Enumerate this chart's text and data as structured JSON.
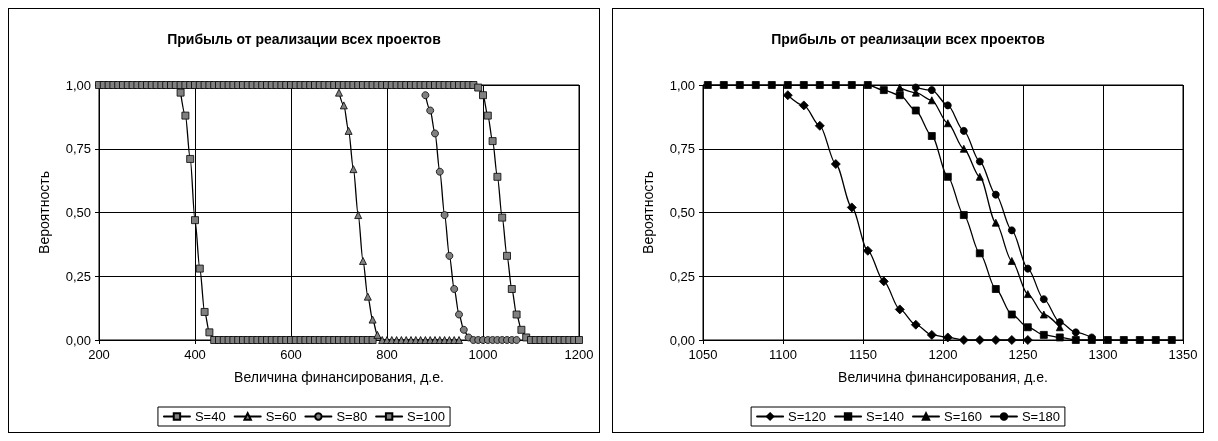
{
  "chart_data": [
    {
      "type": "line",
      "title": "Прибыль от реализации всех проектов",
      "xlabel": "Величина финансирования, д.е.",
      "ylabel": "Вероятность",
      "xlim": [
        200,
        1200
      ],
      "xticks": [
        200,
        400,
        600,
        800,
        1000,
        1200
      ],
      "ylim": [
        0,
        1
      ],
      "yticks": [
        {
          "value": 0,
          "label": "0,00"
        },
        {
          "value": 0.25,
          "label": "0,25"
        },
        {
          "value": 0.5,
          "label": "0,50"
        },
        {
          "value": 0.75,
          "label": "0,75"
        },
        {
          "value": 1,
          "label": "1,00"
        }
      ],
      "grid": true,
      "legend": "bottom",
      "series": [
        {
          "name": "S=40",
          "color": "#808080",
          "marker": "square",
          "x": [
            370,
            380,
            390,
            400,
            410,
            420,
            430,
            440,
            450,
            460,
            470,
            480,
            490,
            500,
            510,
            520,
            530,
            540,
            550,
            560,
            570,
            580,
            590,
            600,
            610,
            620,
            630,
            640,
            650,
            660,
            670,
            680,
            690,
            700,
            710,
            720,
            730,
            740,
            750,
            760,
            770
          ],
          "values": [
            0.97,
            0.88,
            0.71,
            0.47,
            0.28,
            0.11,
            0.03,
            0,
            0,
            0,
            0,
            0,
            0,
            0,
            0,
            0,
            0,
            0,
            0,
            0,
            0,
            0,
            0,
            0,
            0,
            0,
            0,
            0,
            0,
            0,
            0,
            0,
            0,
            0,
            0,
            0,
            0,
            0,
            0,
            0,
            0
          ]
        },
        {
          "name": "S=60",
          "color": "#808080",
          "marker": "triangle",
          "x": [
            700,
            710,
            720,
            730,
            740,
            750,
            760,
            770,
            780,
            790,
            800,
            810,
            820,
            830,
            840,
            850,
            860,
            870,
            880,
            890,
            900,
            910,
            920,
            930,
            940,
            950
          ],
          "values": [
            0.97,
            0.92,
            0.82,
            0.67,
            0.49,
            0.31,
            0.17,
            0.08,
            0.02,
            0,
            0,
            0,
            0,
            0,
            0,
            0,
            0,
            0,
            0,
            0,
            0,
            0,
            0,
            0,
            0,
            0
          ]
        },
        {
          "name": "S=80",
          "color": "#808080",
          "marker": "circle",
          "x": [
            880,
            890,
            900,
            910,
            920,
            930,
            940,
            950,
            960,
            970,
            980,
            990,
            1000,
            1010,
            1020,
            1030,
            1040,
            1050,
            1060,
            1070
          ],
          "values": [
            0.96,
            0.9,
            0.81,
            0.66,
            0.49,
            0.33,
            0.2,
            0.1,
            0.04,
            0.01,
            0,
            0,
            0,
            0,
            0,
            0,
            0,
            0,
            0,
            0
          ]
        },
        {
          "name": "S=100",
          "color": "#808080",
          "marker": "square",
          "x": [
            200,
            210,
            220,
            230,
            240,
            250,
            260,
            270,
            280,
            290,
            300,
            310,
            320,
            330,
            340,
            350,
            360,
            370,
            380,
            390,
            400,
            410,
            420,
            430,
            440,
            450,
            460,
            470,
            480,
            490,
            500,
            510,
            520,
            530,
            540,
            550,
            560,
            570,
            580,
            590,
            600,
            610,
            620,
            630,
            640,
            650,
            660,
            670,
            680,
            690,
            700,
            710,
            720,
            730,
            740,
            750,
            760,
            770,
            780,
            790,
            800,
            810,
            820,
            830,
            840,
            850,
            860,
            870,
            880,
            890,
            900,
            910,
            920,
            930,
            940,
            950,
            960,
            970,
            980,
            990,
            1000,
            1010,
            1020,
            1030,
            1040,
            1050,
            1060,
            1070,
            1080,
            1090,
            1100,
            1110,
            1120,
            1130,
            1140,
            1150,
            1160,
            1170,
            1180,
            1190,
            1200
          ],
          "values": [
            1,
            1,
            1,
            1,
            1,
            1,
            1,
            1,
            1,
            1,
            1,
            1,
            1,
            1,
            1,
            1,
            1,
            1,
            1,
            1,
            1,
            1,
            1,
            1,
            1,
            1,
            1,
            1,
            1,
            1,
            1,
            1,
            1,
            1,
            1,
            1,
            1,
            1,
            1,
            1,
            1,
            1,
            1,
            1,
            1,
            1,
            1,
            1,
            1,
            1,
            1,
            1,
            1,
            1,
            1,
            1,
            1,
            1,
            1,
            1,
            1,
            1,
            1,
            1,
            1,
            1,
            1,
            1,
            1,
            1,
            1,
            1,
            1,
            1,
            1,
            1,
            1,
            1,
            1,
            0.99,
            0.96,
            0.88,
            0.78,
            0.64,
            0.48,
            0.33,
            0.2,
            0.1,
            0.04,
            0.01,
            0,
            0,
            0,
            0,
            0,
            0,
            0,
            0,
            0,
            0,
            0
          ]
        }
      ]
    },
    {
      "type": "line",
      "title": "Прибыль от реализации всех проектов",
      "xlabel": "Величина финансирования, д.е.",
      "ylabel": "Вероятность",
      "xlim": [
        1050,
        1350
      ],
      "xticks": [
        1050,
        1100,
        1150,
        1200,
        1250,
        1300,
        1350
      ],
      "ylim": [
        0,
        1
      ],
      "yticks": [
        {
          "value": 0,
          "label": "0,00"
        },
        {
          "value": 0.25,
          "label": "0,25"
        },
        {
          "value": 0.5,
          "label": "0,50"
        },
        {
          "value": 0.75,
          "label": "0,75"
        },
        {
          "value": 1,
          "label": "1,00"
        }
      ],
      "grid": true,
      "legend": "bottom",
      "series": [
        {
          "name": "S=120",
          "color": "#000000",
          "marker": "diamond",
          "x": [
            1103,
            1113,
            1123,
            1133,
            1143,
            1153,
            1163,
            1173,
            1183,
            1193,
            1203,
            1213,
            1223,
            1233,
            1243,
            1253
          ],
          "values": [
            0.96,
            0.92,
            0.84,
            0.69,
            0.52,
            0.35,
            0.23,
            0.12,
            0.06,
            0.02,
            0.01,
            0,
            0,
            0,
            0,
            0
          ]
        },
        {
          "name": "S=140",
          "color": "#000000",
          "marker": "square",
          "x": [
            1053,
            1063,
            1073,
            1083,
            1093,
            1103,
            1113,
            1123,
            1133,
            1143,
            1153,
            1163,
            1173,
            1183,
            1193,
            1203,
            1213,
            1223,
            1233,
            1243,
            1253,
            1263,
            1273,
            1283,
            1293,
            1303,
            1313,
            1323,
            1333,
            1343
          ],
          "values": [
            1,
            1,
            1,
            1,
            1,
            1,
            1,
            1,
            1,
            1,
            1,
            0.98,
            0.96,
            0.9,
            0.8,
            0.64,
            0.49,
            0.34,
            0.2,
            0.1,
            0.05,
            0.02,
            0.01,
            0,
            0,
            0,
            0,
            0,
            0,
            0
          ]
        },
        {
          "name": "S=160",
          "color": "#000000",
          "marker": "triangle",
          "x": [
            1173,
            1183,
            1193,
            1203,
            1213,
            1223,
            1233,
            1243,
            1253,
            1263,
            1273
          ],
          "values": [
            0.99,
            0.97,
            0.94,
            0.85,
            0.75,
            0.64,
            0.46,
            0.31,
            0.18,
            0.1,
            0.05
          ]
        },
        {
          "name": "S=180",
          "color": "#000000",
          "marker": "circle",
          "x": [
            1183,
            1193,
            1203,
            1213,
            1223,
            1233,
            1243,
            1253,
            1263,
            1273,
            1283,
            1293
          ],
          "values": [
            0.99,
            0.98,
            0.92,
            0.82,
            0.7,
            0.57,
            0.43,
            0.28,
            0.16,
            0.07,
            0.03,
            0.01
          ]
        }
      ]
    }
  ]
}
